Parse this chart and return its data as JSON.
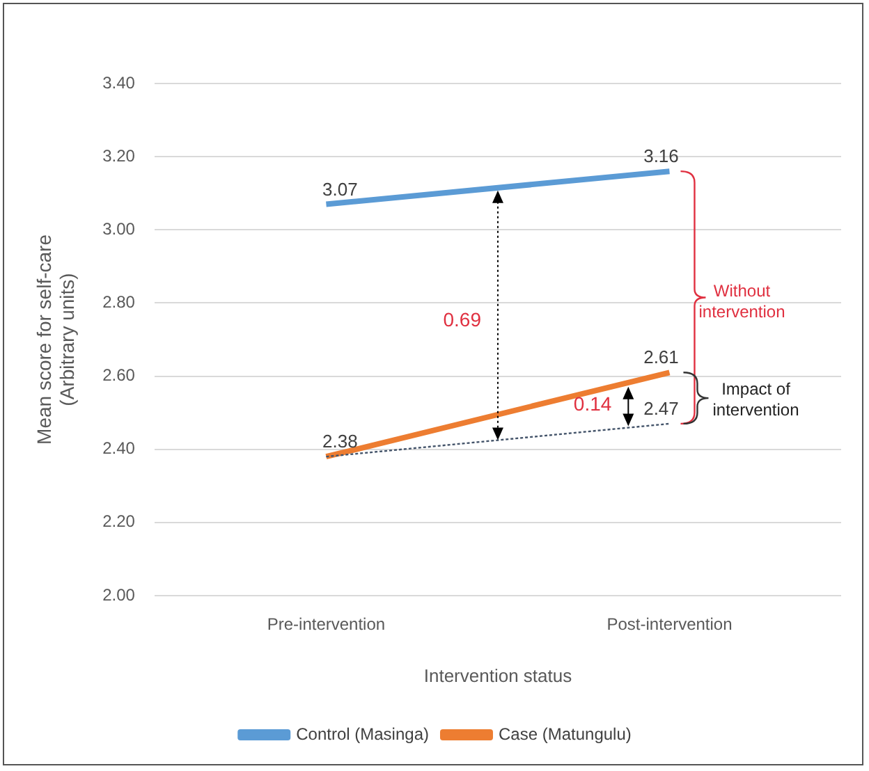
{
  "chart_data": {
    "type": "line",
    "xlabel": "Intervention status",
    "ylabel": "Mean score for self-care (Arbitrary units)",
    "categories": [
      "Pre-intervention",
      "Post-intervention"
    ],
    "series": [
      {
        "name": "Control (Masinga)",
        "color": "#5b9bd5",
        "values": [
          3.07,
          3.16
        ],
        "value_labels": [
          "3.07",
          "3.16"
        ]
      },
      {
        "name": "Case (Matungulu)",
        "color": "#ed7d31",
        "values": [
          2.38,
          2.61
        ],
        "value_labels": [
          "2.38",
          "2.61"
        ]
      },
      {
        "color": "#44546a",
        "values": [
          2.38,
          2.47
        ],
        "value_labels": [
          null,
          "2.47"
        ],
        "line_style": "dotted"
      }
    ],
    "ylim": [
      2.0,
      3.4
    ],
    "yticks": [
      "2.00",
      "2.20",
      "2.40",
      "2.60",
      "2.80",
      "3.00",
      "3.20",
      "3.40"
    ],
    "annotations": [
      "0.69",
      "0.14",
      "Without intervention",
      "Impact of intervention"
    ],
    "grid": "y",
    "legend": "bottom",
    "marker": "none"
  }
}
